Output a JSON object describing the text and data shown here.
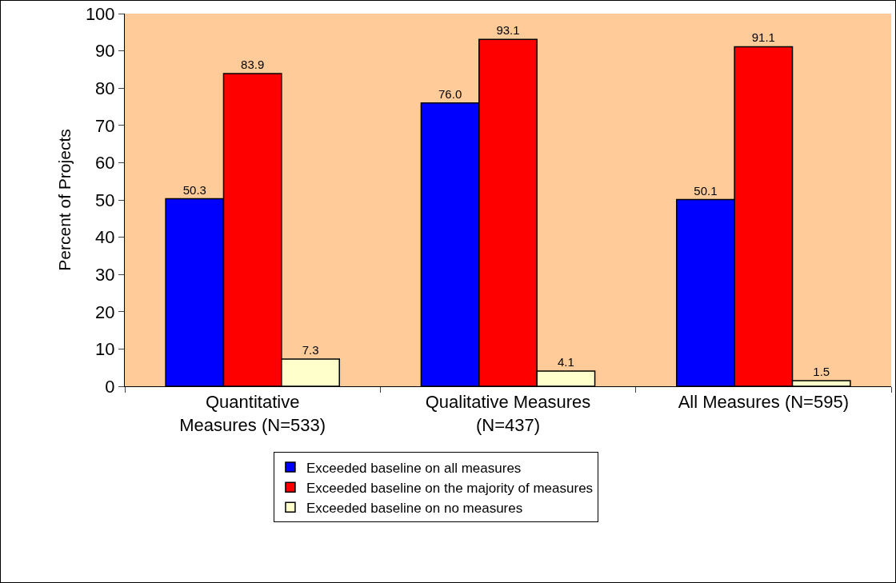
{
  "chart_data": {
    "type": "bar",
    "ylabel": "Percent of Projects",
    "categories": [
      "Quantitative Measures (N=533)",
      "Qualitative Measures (N=437)",
      "All Measures (N=595)"
    ],
    "series": [
      {
        "name": "Exceeded baseline on all measures",
        "color": "#0000ff",
        "values": [
          50.3,
          76.0,
          50.1
        ],
        "value_labels": [
          "50.3",
          "76.0",
          "50.1"
        ]
      },
      {
        "name": "Exceeded baseline on the majority of measures",
        "color": "#ff0000",
        "values": [
          83.9,
          93.1,
          91.1
        ],
        "value_labels": [
          "83.9",
          "93.1",
          "91.1"
        ]
      },
      {
        "name": "Exceeded baseline on no measures",
        "color": "#ffffcc",
        "values": [
          7.3,
          4.1,
          1.5
        ],
        "value_labels": [
          "7.3",
          "4.1",
          "1.5"
        ]
      }
    ],
    "ylim": [
      0,
      100
    ],
    "yticks": [
      0,
      10,
      20,
      30,
      40,
      50,
      60,
      70,
      80,
      90,
      100
    ],
    "grid": false,
    "legend": "bottom"
  }
}
